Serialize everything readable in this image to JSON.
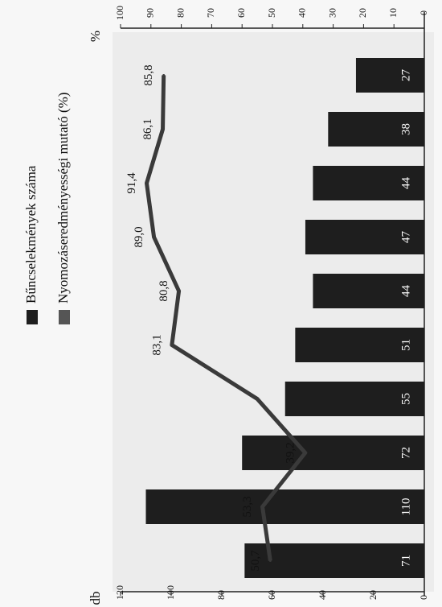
{
  "chart_data": {
    "type": "bar",
    "title": "",
    "legend": {
      "placement": "top",
      "entries": [
        {
          "label": "Bűncselekmények száma",
          "swatch_color": "#1e1e1e"
        },
        {
          "label": "Nyomozáseredményességi mutató (%)",
          "swatch_color": "#555555"
        }
      ]
    },
    "left_axis": {
      "label": "db",
      "ylim": [
        0,
        120
      ],
      "ticks": [
        "0",
        "20",
        "40",
        "60",
        "80",
        "100",
        "120"
      ]
    },
    "right_axis": {
      "label": "%",
      "ylim": [
        0,
        100
      ],
      "ticks": [
        "0",
        "10",
        "20",
        "30",
        "40",
        "50",
        "60",
        "70",
        "80",
        "90",
        "100"
      ]
    },
    "series": [
      {
        "name": "Bűncselekmények száma",
        "kind": "bar",
        "axis": "left",
        "color": "#1e1e1e",
        "values": [
          71,
          110,
          72,
          55,
          51,
          44,
          47,
          44,
          38,
          27
        ],
        "labels": [
          "71",
          "110",
          "72",
          "55",
          "51",
          "44",
          "47",
          "44",
          "38",
          "27"
        ]
      },
      {
        "name": "Nyomozáseredményességi mutató (%)",
        "kind": "line",
        "axis": "right",
        "color": "#3a3a3a",
        "values": [
          50.7,
          53.3,
          39.2,
          55.0,
          83.1,
          80.8,
          89.0,
          91.4,
          86.1,
          85.8
        ],
        "labels": [
          "50,7",
          "53,3",
          "39,2",
          null,
          "83,1",
          "80,8",
          "89,0",
          "91,4",
          "86,1",
          "85,8"
        ]
      }
    ],
    "grid": false
  }
}
